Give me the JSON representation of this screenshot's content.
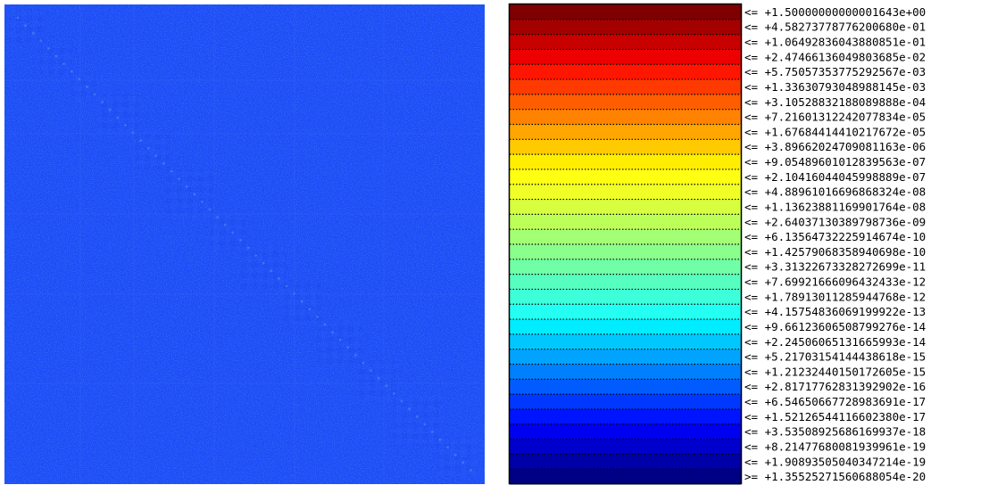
{
  "chart_data": {
    "type": "heatmap",
    "title": "",
    "colormap": "jet",
    "matrix": {
      "description_color": "#1c4df5",
      "dominant_level": "+1.90893505040347214e-19"
    },
    "legend": {
      "entries": [
        {
          "prefix": "<=",
          "value": "+1.50000000000001643e+00",
          "color": "#7f0000"
        },
        {
          "prefix": "<=",
          "value": "+4.58273778776200680e-01",
          "color": "#a40000"
        },
        {
          "prefix": "<=",
          "value": "+1.06492836043880851e-01",
          "color": "#c80000"
        },
        {
          "prefix": "<=",
          "value": "+2.47466136049803685e-02",
          "color": "#ed0000"
        },
        {
          "prefix": "<=",
          "value": "+5.75057353775292567e-03",
          "color": "#ff1600"
        },
        {
          "prefix": "<=",
          "value": "+1.33630793048988145e-03",
          "color": "#ff3a00"
        },
        {
          "prefix": "<=",
          "value": "+3.10528832188089888e-04",
          "color": "#ff5e00"
        },
        {
          "prefix": "<=",
          "value": "+7.21601312242077834e-05",
          "color": "#ff8200"
        },
        {
          "prefix": "<=",
          "value": "+1.67684414410217672e-05",
          "color": "#ffa600"
        },
        {
          "prefix": "<=",
          "value": "+3.89662024709081163e-06",
          "color": "#ffca00"
        },
        {
          "prefix": "<=",
          "value": "+9.05489601012839563e-07",
          "color": "#ffee00"
        },
        {
          "prefix": "<=",
          "value": "+2.10416044045998889e-07",
          "color": "#ffff13"
        },
        {
          "prefix": "<=",
          "value": "+4.88961016696868324e-08",
          "color": "#f0ff26"
        },
        {
          "prefix": "<=",
          "value": "+1.13623881169901764e-08",
          "color": "#d7ff3f"
        },
        {
          "prefix": "<=",
          "value": "+2.64037130389798736e-09",
          "color": "#bdff59"
        },
        {
          "prefix": "<=",
          "value": "+6.13564732225914674e-10",
          "color": "#a3ff73"
        },
        {
          "prefix": "<=",
          "value": "+1.42579068358940698e-10",
          "color": "#8aff8c"
        },
        {
          "prefix": "<=",
          "value": "+3.31322673328272699e-11",
          "color": "#70ffa6"
        },
        {
          "prefix": "<=",
          "value": "+7.69921666096432433e-12",
          "color": "#56ffc0"
        },
        {
          "prefix": "<=",
          "value": "+1.78913011285944768e-12",
          "color": "#3dffd9"
        },
        {
          "prefix": "<=",
          "value": "+4.15754836069199922e-13",
          "color": "#23fff3"
        },
        {
          "prefix": "<=",
          "value": "+9.66123606508799276e-14",
          "color": "#00ecff"
        },
        {
          "prefix": "<=",
          "value": "+2.24506065131665993e-14",
          "color": "#00c8ff"
        },
        {
          "prefix": "<=",
          "value": "+5.21703154144438618e-15",
          "color": "#00a4ff"
        },
        {
          "prefix": "<=",
          "value": "+1.21232440150172605e-15",
          "color": "#0080ff"
        },
        {
          "prefix": "<=",
          "value": "+2.81717762831392902e-16",
          "color": "#005cff"
        },
        {
          "prefix": "<=",
          "value": "+6.54650667728983691e-17",
          "color": "#0038ff"
        },
        {
          "prefix": "<=",
          "value": "+1.52126544116602380e-17",
          "color": "#0014ff"
        },
        {
          "prefix": "<=",
          "value": "+3.53508925686169937e-18",
          "color": "#0000f0"
        },
        {
          "prefix": "<=",
          "value": "+8.21477680081939961e-19",
          "color": "#0000cc"
        },
        {
          "prefix": "<=",
          "value": "+1.90893505040347214e-19",
          "color": "#0000a8"
        },
        {
          "prefix": ">=",
          "value": "+1.35525271560688054e-20",
          "color": "#000084"
        }
      ]
    }
  }
}
